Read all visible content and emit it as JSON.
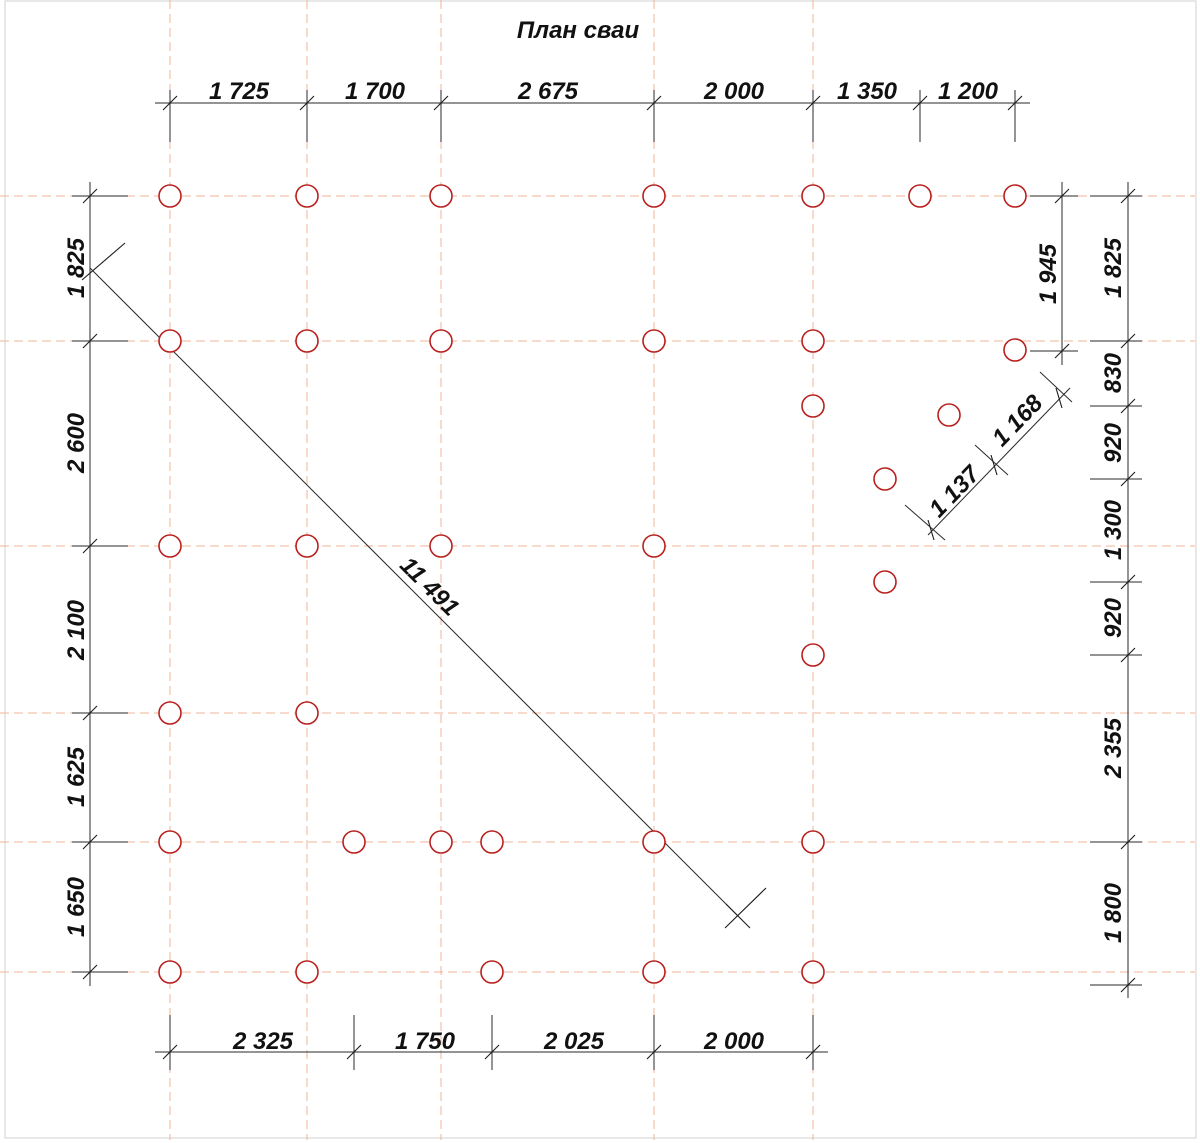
{
  "title": "План сваи",
  "top_dimensions": [
    "1 725",
    "1 700",
    "2 675",
    "2 000",
    "1 350",
    "1 200"
  ],
  "bottom_dimensions": [
    "2 325",
    "1 750",
    "2 025",
    "2 000"
  ],
  "left_dimensions": [
    "1 825",
    "2 600",
    "2 100",
    "1 625",
    "1 650"
  ],
  "right_dimensions": [
    "1 825",
    "830",
    "920",
    "1 300",
    "920",
    "2 355",
    "1 800"
  ],
  "inner_dimensions": {
    "d1945": "1 945",
    "d1137": "1 137",
    "d1168": "1 168",
    "diagonal": "11 491"
  },
  "colors": {
    "pile": "#b8201e",
    "axis": "#f0b49a",
    "dimension": "#2a2a2a"
  },
  "icons": {
    "pile": "circle-outline-icon"
  }
}
